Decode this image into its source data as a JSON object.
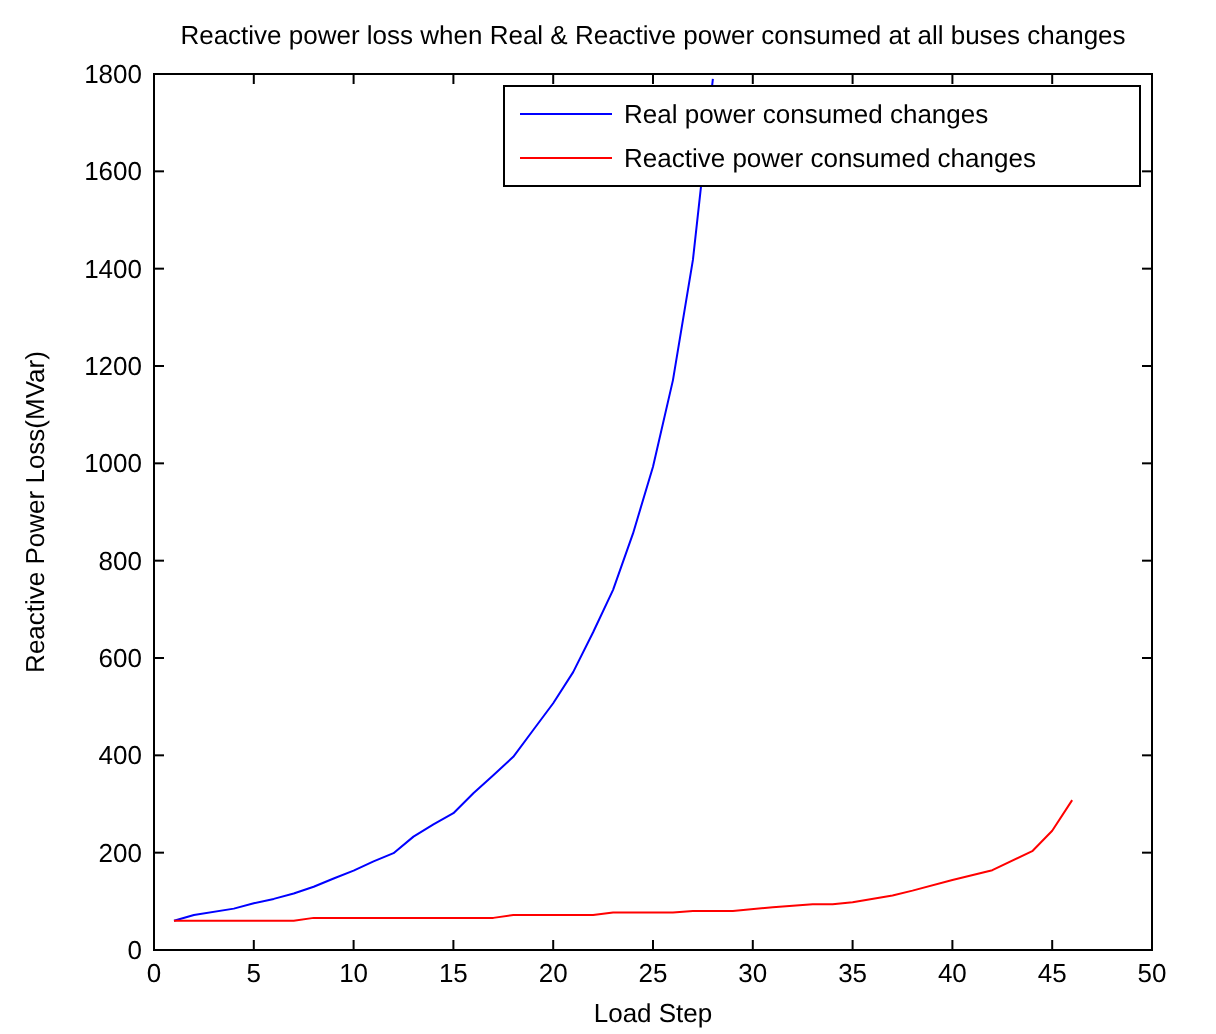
{
  "chart_data": {
    "type": "line",
    "title": "Reactive power loss when Real & Reactive power consumed at all buses changes",
    "xlabel": "Load Step",
    "ylabel": "Reactive Power Loss(MVar)",
    "xlim": [
      0,
      50
    ],
    "xticks": [
      0,
      5,
      10,
      15,
      20,
      25,
      30,
      35,
      40,
      45,
      50
    ],
    "ylim": [
      0,
      1800
    ],
    "yticks": [
      0,
      200,
      400,
      600,
      800,
      1000,
      1200,
      1400,
      1600,
      1800
    ],
    "grid": false,
    "legend": "top right",
    "line_style": "solid",
    "series": [
      {
        "name": "Real power consumed changes",
        "color": "#0000ff",
        "x": [
          1,
          2,
          4,
          5,
          6,
          7,
          8,
          9,
          10,
          11,
          12,
          13,
          14,
          15,
          16,
          17,
          18,
          19,
          20,
          21,
          22,
          23,
          24,
          25,
          26,
          27,
          28
        ],
        "values": [
          60,
          72,
          85,
          96,
          105,
          116,
          130,
          147,
          163,
          182,
          199,
          233,
          258,
          281,
          322,
          359,
          397,
          452,
          507,
          571,
          653,
          740,
          856,
          993,
          1171,
          1418,
          1790
        ]
      },
      {
        "name": "Reactive power consumed changes",
        "color": "#ff0000",
        "x": [
          1,
          7,
          8,
          17,
          18,
          22,
          23,
          26,
          27,
          29,
          31,
          33,
          34,
          35,
          37,
          38,
          40,
          42,
          44,
          45,
          46
        ],
        "values": [
          60,
          60,
          66,
          66,
          72,
          72,
          77,
          77,
          80,
          80,
          88,
          94,
          94,
          98,
          112,
          122,
          144,
          164,
          203,
          245,
          308
        ]
      }
    ]
  }
}
